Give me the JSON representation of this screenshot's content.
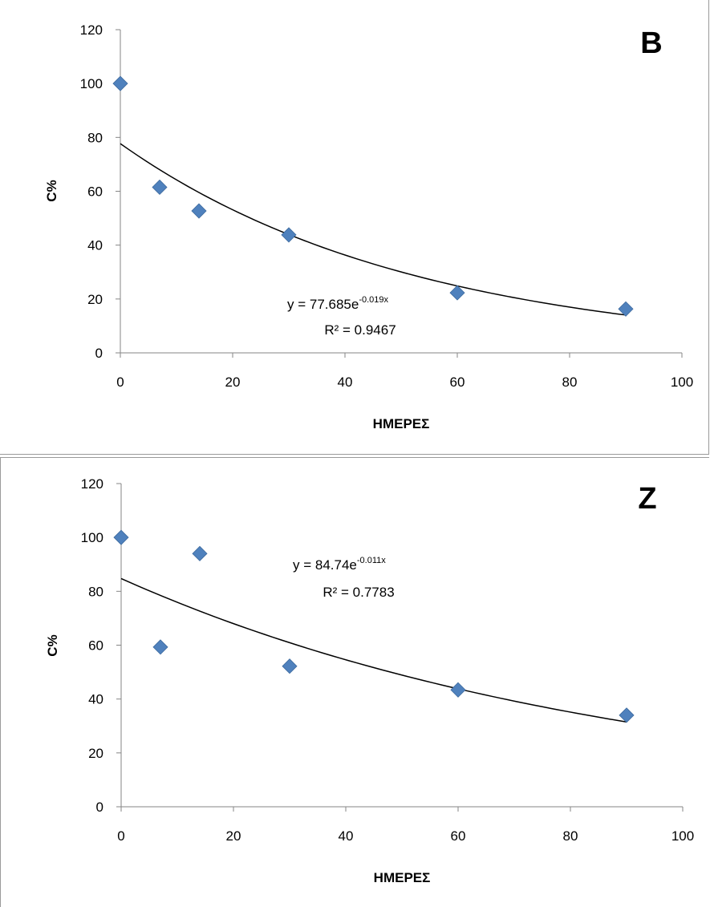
{
  "chart_data": [
    {
      "type": "scatter",
      "panel_label": "B",
      "xlabel": "ΗΜΕΡΕΣ",
      "ylabel": "C%",
      "xlim": [
        0,
        100
      ],
      "ylim": [
        0,
        120
      ],
      "xticks": [
        0,
        20,
        40,
        60,
        80,
        100
      ],
      "yticks": [
        0,
        20,
        40,
        60,
        80,
        100,
        120
      ],
      "series": [
        {
          "x": [
            0,
            7,
            14,
            30,
            60,
            90
          ],
          "y": [
            100,
            61.5,
            52.7,
            43.8,
            22.3,
            16.3
          ],
          "color": "#4f81bd",
          "marker": "diamond"
        }
      ],
      "trendline": {
        "type": "exponential",
        "a": 77.685,
        "b": -0.019,
        "x_range": [
          0,
          90
        ],
        "color": "#000000"
      },
      "equation": {
        "prefix": "y = 77.685e",
        "exponent": "-0.019x",
        "r2": "R² = 0.9467"
      },
      "legend": "none",
      "grid": false
    },
    {
      "type": "scatter",
      "panel_label": "Z",
      "xlabel": "ΗΜΕΡΕΣ",
      "ylabel": "C%",
      "xlim": [
        0,
        100
      ],
      "ylim": [
        0,
        120
      ],
      "xticks": [
        0,
        20,
        40,
        60,
        80,
        100
      ],
      "yticks": [
        0,
        20,
        40,
        60,
        80,
        100,
        120
      ],
      "series": [
        {
          "x": [
            0,
            7,
            14,
            30,
            60,
            90
          ],
          "y": [
            100,
            59.3,
            94,
            52.2,
            43.4,
            34
          ],
          "color": "#4f81bd",
          "marker": "diamond"
        }
      ],
      "trendline": {
        "type": "exponential",
        "a": 84.74,
        "b": -0.011,
        "x_range": [
          0,
          90
        ],
        "color": "#000000"
      },
      "equation": {
        "prefix": "y = 84.74e",
        "exponent": "-0.011x",
        "r2": "R² = 0.7783"
      },
      "legend": "none",
      "grid": false
    }
  ]
}
